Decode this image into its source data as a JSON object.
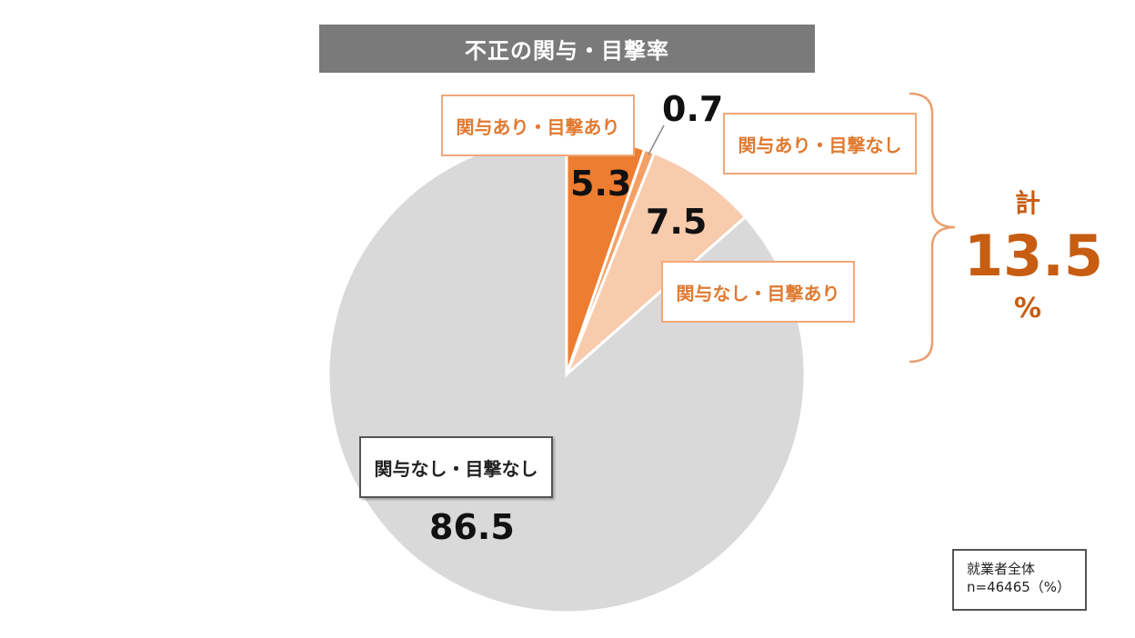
{
  "chart_data": {
    "type": "pie",
    "title": "不正の関与・目撃率",
    "unit": "%",
    "slices": [
      {
        "label": "関与あり・目撃あり",
        "value": 5.3,
        "color": "#ed7d31"
      },
      {
        "label": "関与あり・目撃なし",
        "value": 0.7,
        "color": "#f4a064"
      },
      {
        "label": "関与なし・目撃あり",
        "value": 7.5,
        "color": "#f8cbad"
      },
      {
        "label": "関与なし・目撃なし",
        "value": 86.5,
        "color": "#d9d9d9"
      }
    ],
    "value_labels": [
      "5.3",
      "0.7",
      "7.5",
      "86.5"
    ],
    "total": {
      "label": "計",
      "value": "13.5",
      "unit": "%"
    },
    "note": {
      "line1": "就業者全体",
      "line2": "n=46465（%）"
    }
  }
}
